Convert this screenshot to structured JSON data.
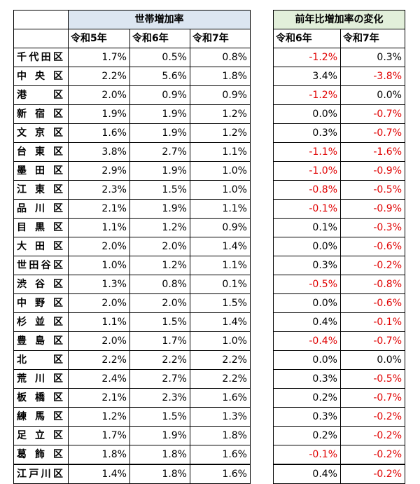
{
  "left_header": {
    "title": "世帯増加率",
    "columns": [
      "令和5年",
      "令和6年",
      "令和7年"
    ]
  },
  "right_header": {
    "title": "前年比増加率の変化",
    "columns": [
      "令和6年",
      "令和7年"
    ]
  },
  "colors": {
    "left_header_bg": "#dce6f1",
    "right_header_bg": "#e2efda",
    "negative_text": "#e00000"
  },
  "rows": [
    {
      "ward": "千代田区",
      "r5": "1.7%",
      "r6": "0.5%",
      "r7": "0.8%",
      "c6": "-1.2%",
      "c7": "0.3%"
    },
    {
      "ward": "中央区",
      "r5": "2.2%",
      "r6": "5.6%",
      "r7": "1.8%",
      "c6": "3.4%",
      "c7": "-3.8%"
    },
    {
      "ward": "港区",
      "r5": "2.0%",
      "r6": "0.9%",
      "r7": "0.9%",
      "c6": "-1.2%",
      "c7": "0.0%"
    },
    {
      "ward": "新宿区",
      "r5": "1.9%",
      "r6": "1.9%",
      "r7": "1.2%",
      "c6": "0.0%",
      "c7": "-0.7%"
    },
    {
      "ward": "文京区",
      "r5": "1.6%",
      "r6": "1.9%",
      "r7": "1.2%",
      "c6": "0.3%",
      "c7": "-0.7%"
    },
    {
      "ward": "台東区",
      "r5": "3.8%",
      "r6": "2.7%",
      "r7": "1.1%",
      "c6": "-1.1%",
      "c7": "-1.6%"
    },
    {
      "ward": "墨田区",
      "r5": "2.9%",
      "r6": "1.9%",
      "r7": "1.0%",
      "c6": "-1.0%",
      "c7": "-0.9%"
    },
    {
      "ward": "江東区",
      "r5": "2.3%",
      "r6": "1.5%",
      "r7": "1.0%",
      "c6": "-0.8%",
      "c7": "-0.5%"
    },
    {
      "ward": "品川区",
      "r5": "2.1%",
      "r6": "1.9%",
      "r7": "1.1%",
      "c6": "-0.1%",
      "c7": "-0.9%"
    },
    {
      "ward": "目黒区",
      "r5": "1.1%",
      "r6": "1.2%",
      "r7": "0.9%",
      "c6": "0.1%",
      "c7": "-0.3%"
    },
    {
      "ward": "大田区",
      "r5": "2.0%",
      "r6": "2.0%",
      "r7": "1.4%",
      "c6": "0.0%",
      "c7": "-0.6%"
    },
    {
      "ward": "世田谷区",
      "r5": "1.0%",
      "r6": "1.2%",
      "r7": "1.1%",
      "c6": "0.3%",
      "c7": "-0.2%"
    },
    {
      "ward": "渋谷区",
      "r5": "1.3%",
      "r6": "0.8%",
      "r7": "0.1%",
      "c6": "-0.5%",
      "c7": "-0.8%"
    },
    {
      "ward": "中野区",
      "r5": "2.0%",
      "r6": "2.0%",
      "r7": "1.5%",
      "c6": "0.0%",
      "c7": "-0.6%"
    },
    {
      "ward": "杉並区",
      "r5": "1.1%",
      "r6": "1.5%",
      "r7": "1.4%",
      "c6": "0.4%",
      "c7": "-0.1%"
    },
    {
      "ward": "豊島区",
      "r5": "2.0%",
      "r6": "1.7%",
      "r7": "1.0%",
      "c6": "-0.4%",
      "c7": "-0.7%"
    },
    {
      "ward": "北区",
      "r5": "2.2%",
      "r6": "2.2%",
      "r7": "2.2%",
      "c6": "0.0%",
      "c7": "0.0%"
    },
    {
      "ward": "荒川区",
      "r5": "2.4%",
      "r6": "2.7%",
      "r7": "2.2%",
      "c6": "0.3%",
      "c7": "-0.5%"
    },
    {
      "ward": "板橋区",
      "r5": "2.1%",
      "r6": "2.3%",
      "r7": "1.6%",
      "c6": "0.2%",
      "c7": "-0.7%"
    },
    {
      "ward": "練馬区",
      "r5": "1.2%",
      "r6": "1.5%",
      "r7": "1.3%",
      "c6": "0.3%",
      "c7": "-0.2%"
    },
    {
      "ward": "足立区",
      "r5": "1.7%",
      "r6": "1.9%",
      "r7": "1.8%",
      "c6": "0.2%",
      "c7": "-0.2%"
    },
    {
      "ward": "葛飾区",
      "r5": "1.8%",
      "r6": "1.8%",
      "r7": "1.6%",
      "c6": "-0.1%",
      "c7": "-0.2%"
    },
    {
      "ward": "江戸川区",
      "r5": "1.4%",
      "r6": "1.8%",
      "r7": "1.6%",
      "c6": "0.4%",
      "c7": "-0.2%"
    }
  ]
}
